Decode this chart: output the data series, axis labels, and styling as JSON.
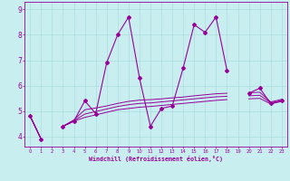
{
  "x_values": [
    0,
    1,
    2,
    3,
    4,
    5,
    6,
    7,
    8,
    9,
    10,
    11,
    12,
    13,
    14,
    15,
    16,
    17,
    18,
    19,
    20,
    21,
    22,
    23
  ],
  "line1": [
    4.8,
    3.9,
    null,
    4.4,
    4.6,
    5.4,
    4.9,
    6.9,
    8.0,
    8.7,
    6.3,
    4.4,
    5.1,
    5.2,
    6.7,
    8.4,
    8.1,
    8.7,
    6.6,
    null,
    5.7,
    5.9,
    5.3,
    5.4
  ],
  "line2_a": [
    4.8,
    3.9,
    null,
    4.4,
    4.6,
    4.75,
    4.85,
    4.95,
    5.05,
    5.1,
    5.15,
    5.18,
    5.22,
    5.26,
    5.3,
    5.34,
    5.38,
    5.42,
    5.45,
    null,
    5.48,
    5.5,
    5.28,
    5.38
  ],
  "line2_b": [
    4.8,
    3.9,
    null,
    4.4,
    4.62,
    4.88,
    4.98,
    5.08,
    5.18,
    5.25,
    5.3,
    5.32,
    5.36,
    5.4,
    5.44,
    5.48,
    5.52,
    5.56,
    5.58,
    null,
    5.6,
    5.62,
    5.32,
    5.42
  ],
  "line2_c": [
    4.8,
    3.9,
    null,
    4.4,
    4.65,
    5.05,
    5.12,
    5.2,
    5.3,
    5.38,
    5.43,
    5.45,
    5.48,
    5.52,
    5.55,
    5.6,
    5.64,
    5.68,
    5.7,
    null,
    5.72,
    5.74,
    5.36,
    5.46
  ],
  "bg_color": "#c8eef0",
  "line_color": "#990099",
  "grid_color": "#aadddd",
  "xlabel": "Windchill (Refroidissement éolien,°C)",
  "yticks": [
    4,
    5,
    6,
    7,
    8,
    9
  ],
  "ylim": [
    3.6,
    9.3
  ],
  "xlim": [
    -0.5,
    23.5
  ]
}
